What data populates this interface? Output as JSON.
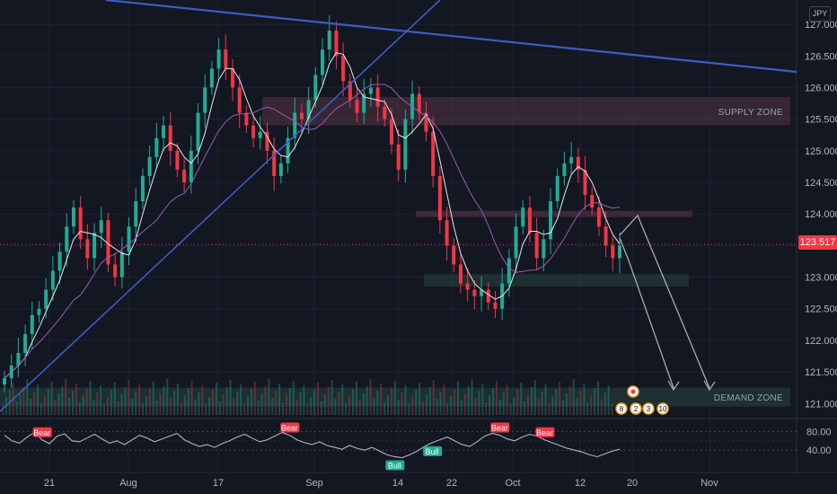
{
  "chart_data": {
    "type": "candlestick",
    "currency": "JPY",
    "last_price": "123.517",
    "price_axis": {
      "ticks": [
        "127.000",
        "126.500",
        "126.000",
        "125.500",
        "125.000",
        "124.500",
        "124.000",
        "123.500",
        "123.000",
        "122.500",
        "122.000",
        "121.500",
        "121.000"
      ],
      "range": [
        120.9,
        127.2
      ]
    },
    "time_axis": {
      "labels": [
        "21",
        "Aug",
        "17",
        "Sep",
        "14",
        "22",
        "Oct",
        "12",
        "20",
        "Nov"
      ]
    },
    "zones": [
      {
        "label": "SUPPLY ZONE",
        "from": 125.4,
        "to": 125.85
      },
      {
        "label": "DEMAND ZONE",
        "from": 120.95,
        "to": 121.25
      },
      {
        "label": "",
        "from": 123.95,
        "to": 124.05
      },
      {
        "label": "",
        "from": 122.85,
        "to": 123.05
      }
    ],
    "closes": [
      121.4,
      121.6,
      121.8,
      122.1,
      122.4,
      122.5,
      122.8,
      123.1,
      123.4,
      123.8,
      124.1,
      123.6,
      123.3,
      123.7,
      123.9,
      123.2,
      123.0,
      123.4,
      123.8,
      124.2,
      124.6,
      124.9,
      125.2,
      125.4,
      125.0,
      124.7,
      124.5,
      125.0,
      125.6,
      126.0,
      126.3,
      126.6,
      126.3,
      126.0,
      125.6,
      125.4,
      125.2,
      125.3,
      125.0,
      124.6,
      124.8,
      125.2,
      125.6,
      125.5,
      125.8,
      126.2,
      126.6,
      126.9,
      126.5,
      126.1,
      125.8,
      125.6,
      125.9,
      126.0,
      125.7,
      125.5,
      125.1,
      124.7,
      125.5,
      125.9,
      125.6,
      125.3,
      124.6,
      123.9,
      123.5,
      123.2,
      122.9,
      122.8,
      122.7,
      122.8,
      122.6,
      122.5,
      122.9,
      123.3,
      123.8,
      124.1,
      123.7,
      123.3,
      123.6,
      124.2,
      124.6,
      124.8,
      124.9,
      124.7,
      124.3,
      124.1,
      123.8,
      123.5,
      123.3,
      123.5
    ],
    "rsi": {
      "labels": [
        "80.00",
        "40.00"
      ],
      "values": [
        72,
        60,
        55,
        68,
        78,
        62,
        54,
        70,
        75,
        60,
        58,
        66,
        74,
        64,
        55,
        60,
        52,
        62,
        72,
        66,
        58,
        64,
        70,
        76,
        62,
        54,
        48,
        52,
        46,
        54,
        60,
        68,
        74,
        66,
        58,
        62,
        70,
        78,
        72,
        62,
        56,
        52,
        58,
        50,
        46,
        42,
        50,
        44,
        40,
        46,
        38,
        30,
        26,
        24,
        30,
        38,
        48,
        56,
        62,
        68,
        60,
        52,
        48,
        58,
        70,
        76,
        72,
        64,
        60,
        68,
        74,
        70,
        62,
        56,
        50,
        44,
        40,
        36,
        30,
        26,
        32,
        38,
        42
      ],
      "signals": [
        {
          "text": "Bear",
          "color": "#f23645",
          "index": 5
        },
        {
          "text": "Bear",
          "color": "#f23645",
          "index": 38
        },
        {
          "text": "Bull",
          "color": "#22ab94",
          "index": 52
        },
        {
          "text": "Bull",
          "color": "#22ab94",
          "index": 57
        },
        {
          "text": "Bear",
          "color": "#f23645",
          "index": 66
        },
        {
          "text": "Bear",
          "color": "#f23645",
          "index": 72
        }
      ]
    },
    "events": [
      {
        "text": "8"
      },
      {
        "text": "2"
      },
      {
        "text": "3"
      },
      {
        "text": "10"
      }
    ]
  }
}
